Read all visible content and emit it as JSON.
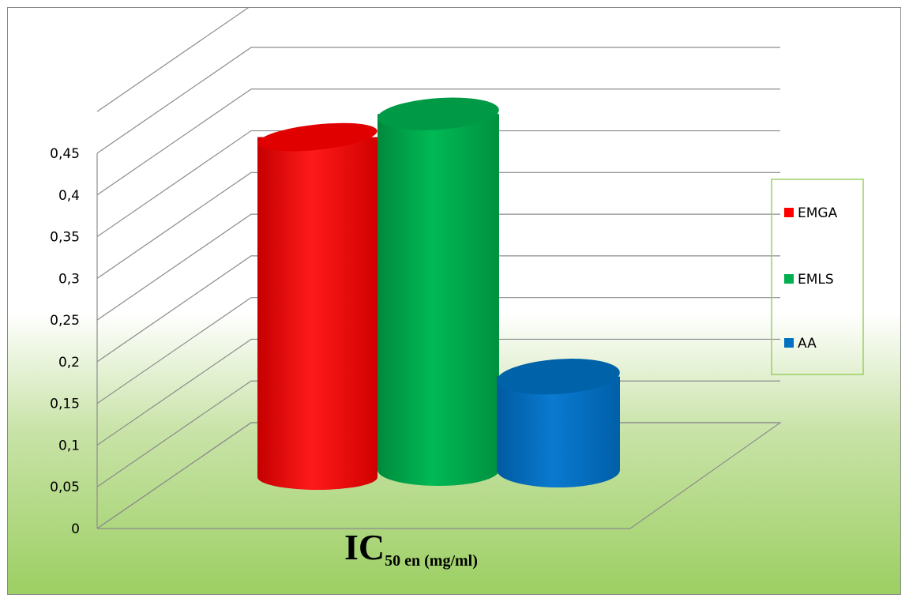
{
  "chart_data": {
    "type": "bar",
    "style": "3d-cylinder",
    "categories": [
      ""
    ],
    "series": [
      {
        "name": "EMGA",
        "values": [
          0.43
        ],
        "color": "#ff0000"
      },
      {
        "name": "EMLS",
        "values": [
          0.46
        ],
        "color": "#00b050"
      },
      {
        "name": "AA",
        "values": [
          0.12
        ],
        "color": "#0070c0"
      }
    ],
    "yticks": [
      "0",
      "0,05",
      "0,1",
      "0,15",
      "0,2",
      "0,25",
      "0,3",
      "0,35",
      "0,4",
      "0,45"
    ],
    "ylim": [
      0,
      0.45
    ],
    "xlabel_main": "IC",
    "xlabel_sub": "50 en (mg/ml)",
    "legend_position": "right",
    "grid": true,
    "background": [
      "#ffffff",
      "#9ccf63"
    ]
  }
}
